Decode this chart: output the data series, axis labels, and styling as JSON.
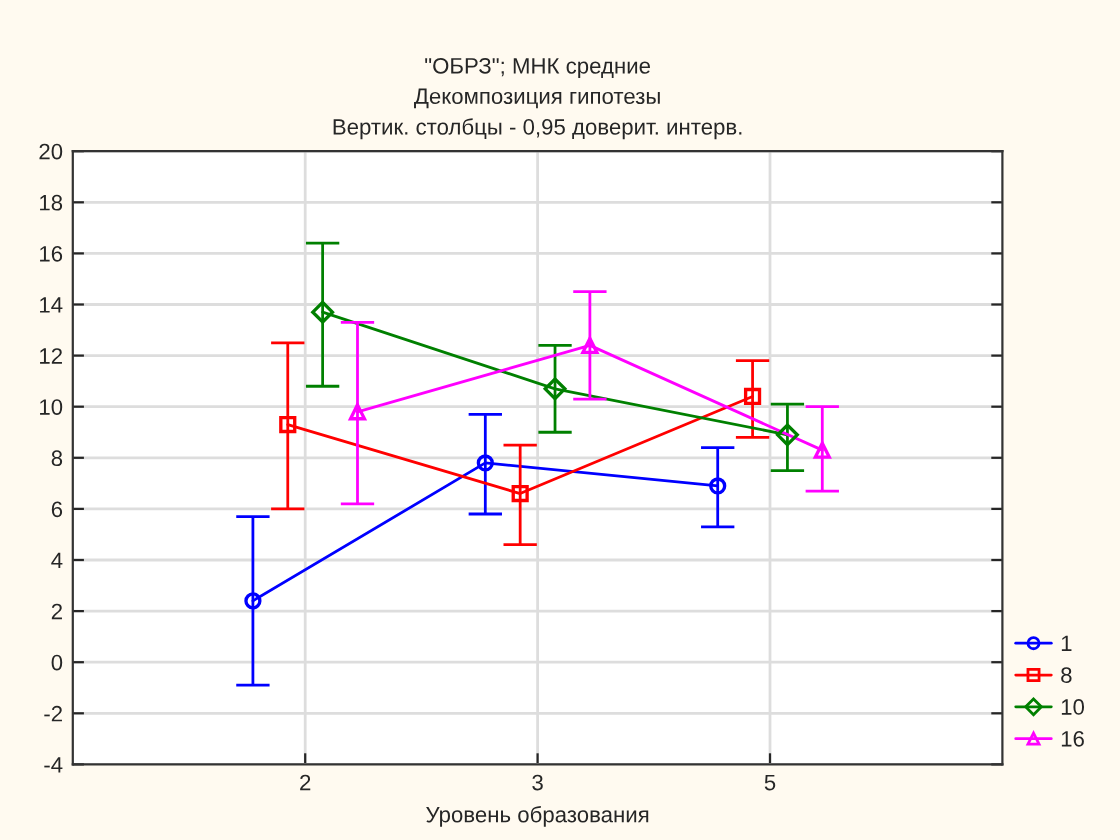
{
  "chart_data": {
    "type": "line",
    "title": "\"ОБРЗ\"; МНК средние\nДекомпозиция гипотезы\nВертик. столбцы - 0,95 доверит. интерв.",
    "xlabel": "Уровень образования",
    "categories": [
      "2",
      "3",
      "5"
    ],
    "series": [
      {
        "name": "1",
        "color": "#0000ff",
        "marker": "circle",
        "values": [
          2.4,
          7.8,
          6.9
        ],
        "errors": [
          [
            -0.9,
            5.7
          ],
          [
            5.8,
            9.7
          ],
          [
            5.3,
            8.4
          ]
        ]
      },
      {
        "name": "8",
        "color": "#ff0000",
        "marker": "square",
        "values": [
          9.3,
          6.6,
          10.4
        ],
        "errors": [
          [
            6.0,
            12.5
          ],
          [
            4.6,
            8.5
          ],
          [
            8.8,
            11.8
          ]
        ]
      },
      {
        "name": "10",
        "color": "#008000",
        "marker": "diamond",
        "values": [
          13.7,
          10.7,
          8.9
        ],
        "errors": [
          [
            10.8,
            16.4
          ],
          [
            9.0,
            12.4
          ],
          [
            7.5,
            10.1
          ]
        ]
      },
      {
        "name": "16",
        "color": "#ff00ff",
        "marker": "triangle",
        "values": [
          9.8,
          12.4,
          8.3
        ],
        "errors": [
          [
            6.2,
            13.3
          ],
          [
            10.3,
            14.5
          ],
          [
            6.7,
            10.0
          ]
        ]
      }
    ],
    "ylim": [
      -4,
      20
    ],
    "yticks": [
      -4,
      -2,
      0,
      2,
      4,
      6,
      8,
      10,
      12,
      14,
      16,
      18,
      20
    ],
    "grid": true,
    "legend": "bottom right",
    "line_style": "solid"
  }
}
